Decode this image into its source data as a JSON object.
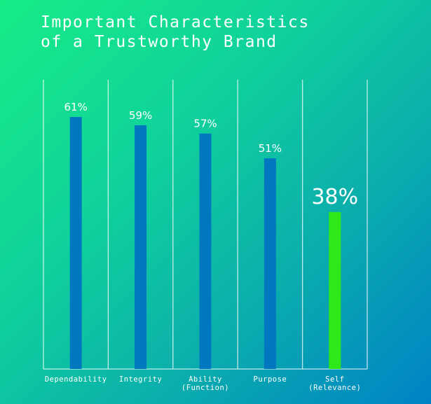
{
  "chart_data": {
    "type": "bar",
    "title": [
      "Important Characteristics",
      "of a Trustworthy Brand"
    ],
    "categories": [
      [
        "Dependability"
      ],
      [
        "Integrity"
      ],
      [
        "Ability",
        "(Function)"
      ],
      [
        "Purpose"
      ],
      [
        "Self",
        "(Relevance)"
      ]
    ],
    "values": [
      61,
      59,
      57,
      51,
      38
    ],
    "data_labels": [
      "61%",
      "59%",
      "57%",
      "51%",
      "38%"
    ],
    "highlight_index": 4,
    "ylim": [
      0,
      100
    ],
    "grid": "vertical separators",
    "colors": {
      "bar": "#0078c0",
      "highlight": "#2ee81a",
      "text": "#ffffff"
    }
  }
}
